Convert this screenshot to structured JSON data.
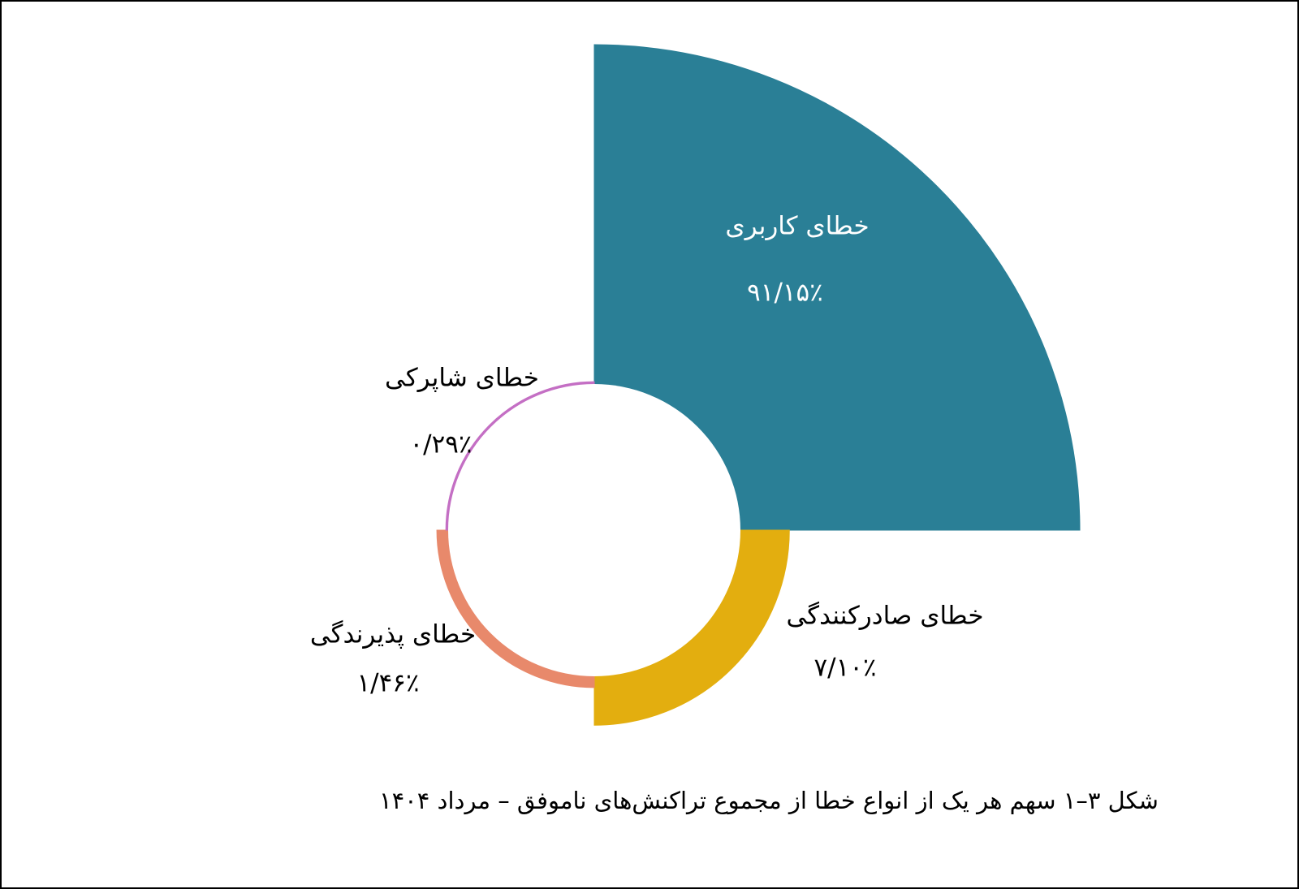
{
  "chart_data": {
    "type": "rose",
    "title": "شکل ۳–۱ سهم هر یک از انواع خطا از مجموع تراکنش‌های ناموفق – مرداد ۱۴۰۴",
    "categories": [
      "خطای کاربری",
      "خطای صادرکنندگی",
      "خطای پذیرندگی",
      "خطای شاپرکی"
    ],
    "values": [
      91.15,
      7.1,
      1.46,
      0.29
    ],
    "value_labels": [
      "۹۱/۱۵٪",
      "۷/۱۰٪",
      "۱/۴۶٪",
      "۰/۲۹٪"
    ],
    "colors": [
      "#2a7f96",
      "#e3ae0f",
      "#e8896b",
      "#c46fc4"
    ]
  }
}
